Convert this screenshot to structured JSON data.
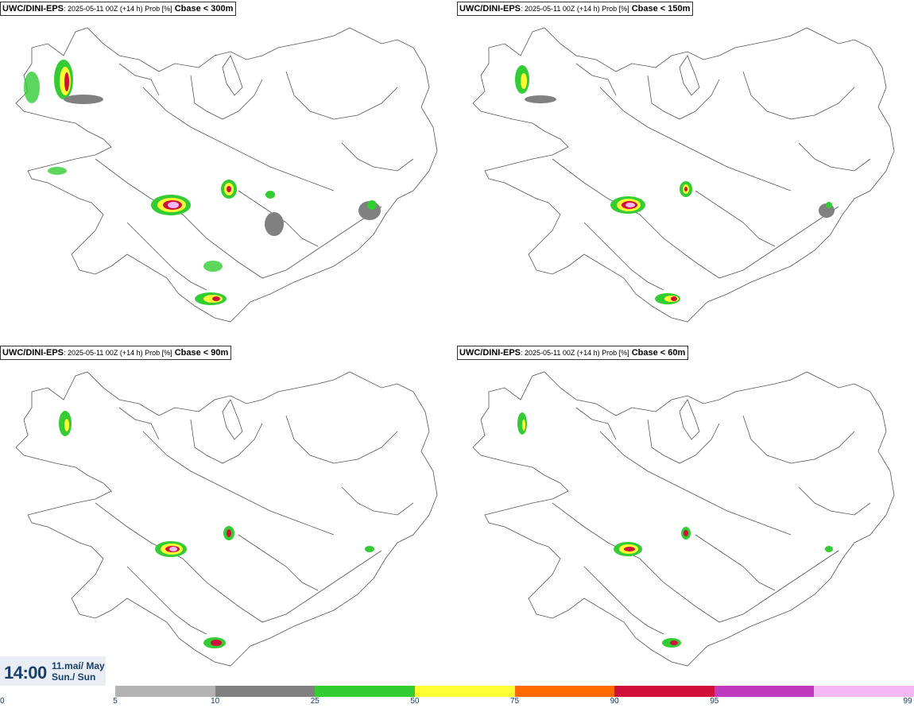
{
  "panels": [
    {
      "model": "UWC/DINI-EPS",
      "meta": ": 2025-05-11 00Z (+14 h) Prob [%]",
      "variable": "Cbase < 300m"
    },
    {
      "model": "UWC/DINI-EPS",
      "meta": ": 2025-05-11 00Z (+14 h) Prob [%]",
      "variable": "Cbase < 150m"
    },
    {
      "model": "UWC/DINI-EPS",
      "meta": ": 2025-05-11 00Z (+14 h) Prob [%]",
      "variable": "Cbase < 90m"
    },
    {
      "model": "UWC/DINI-EPS",
      "meta": ": 2025-05-11 00Z (+14 h) Prob [%]",
      "variable": "Cbase < 60m"
    }
  ],
  "valid_time": {
    "time": "14:00",
    "date_line1": "11.maí/ May",
    "date_line2": "Sun./ Sun"
  },
  "legend": {
    "ticks": [
      "0",
      "5",
      "10",
      "25",
      "50",
      "75",
      "90",
      "95",
      "99"
    ],
    "colors": [
      "#b3b3b3",
      "#808080",
      "#33cc33",
      "#ffff33",
      "#ff6a00",
      "#d0103a",
      "#c03ac0",
      "#f5b8f5"
    ]
  }
}
